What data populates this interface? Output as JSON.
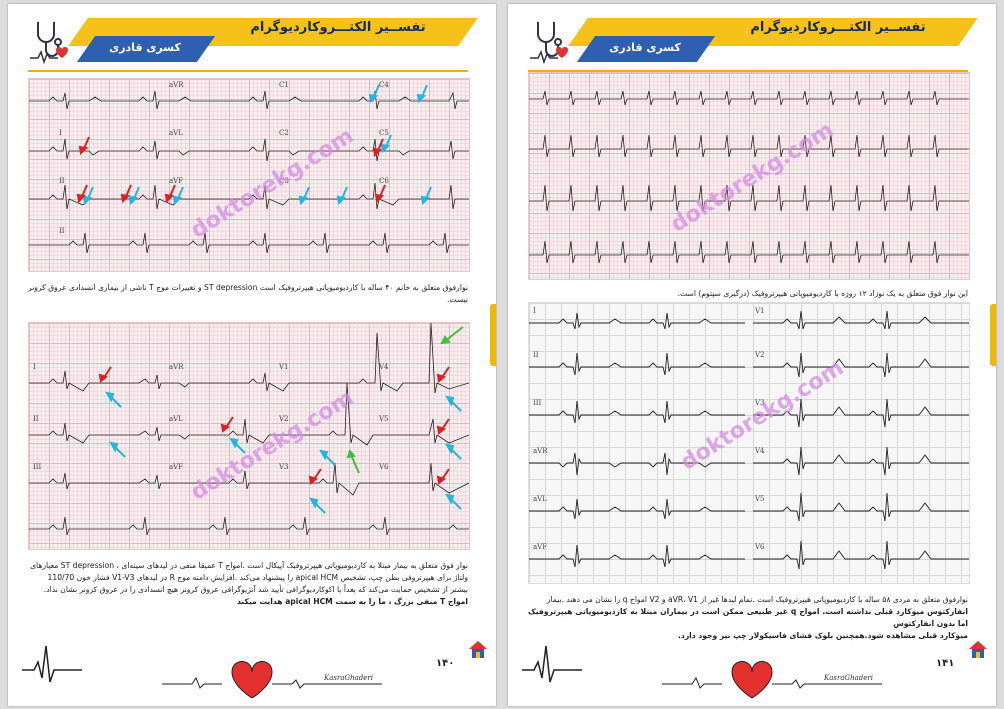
{
  "header": {
    "title": "تفســیر الکتـــروکاردیوگرام",
    "subtitle": "کسری قادری"
  },
  "watermark": "doktorekg.com",
  "left_page": {
    "page_number": "۱۴۰",
    "ecg1_leads": [
      "aVR",
      "C1",
      "C4",
      "I",
      "aVL",
      "C2",
      "C5",
      "II",
      "aVF",
      "C3",
      "C6",
      "II"
    ],
    "caption1": "نوارفوق متعلق به خانم ۴۰ ساله با کاردیومیوپاتی هیپرتروفیک است ST depression و تغییرات موج T ناشی از بیماری انسدادی عروق کرونر نیست.",
    "ecg2_leads": [
      "I",
      "aVR",
      "V1",
      "V4",
      "II",
      "aVL",
      "V2",
      "V5",
      "III",
      "aVF",
      "V3",
      "V6"
    ],
    "caption2_lines": [
      "نوار فوق متعلق به بیمار مبتلا به کاردیومیوپاتی هیپرتروفیک آپیکال است .امواج T عمیقا منفی در لیدهای سینه‌ای ، ST depression معیارهای",
      "ولتاژ برای هیپرتروفی بطن چپ، تشخیص apical HCM را پیشنهاد می‌کند .افزایش دامنه موج R در لیدهای V1-V3 فشار خون 110/70",
      "بیشتر از تشخیص حمایت می‌کند که بعداً با اکوکاردیوگرافی تأیید شد آنژیوگرافی عروق کرونر هیچ انسدادی را در عروق کرونر نشان نداد."
    ],
    "caption2_bold": "امواج T منفی بزرگ ، ما را به سمت apical HCM هدایت میکند"
  },
  "right_page": {
    "page_number": "۱۴۱",
    "caption1": "این نوار فوق متعلق به یک نوزاد ۱۲ روزه با کاردیومیوپاتی هیپرتروفیک (درگیری سپتوم) است.",
    "ecg2_leads": [
      "I",
      "II",
      "III",
      "aVR",
      "aVL",
      "aVF",
      "V1",
      "V2",
      "V3",
      "V4",
      "V5",
      "V6"
    ],
    "caption2_lines": [
      "نوارفوق متعلق به مردی ۵۸ ساله با کاردیومیوپاتی هیپرتروفیک است .تمام لیدها غیر از aVR، V1 و V2 امواج q را نشان می دهند .بیمار",
      "انفارکتوس میوکارد قبلی نداشته است. امواج q غیر طبیعی ممکن است در بیماران مبتلا به کاردیومیوپاتی هیپرتروفیک اما بدون انفارکتوس",
      "میوکارد قبلی مشاهده شود.همچنین بلوک فشای فاسیکولار چپ نیز وجود دارد."
    ]
  },
  "footer": {
    "signature": "KasraGhaderi"
  },
  "colors": {
    "header_yellow": "#f6c21a",
    "header_blue": "#2f5fb0",
    "arrow_red": "#e02020",
    "arrow_cyan": "#22b5e8",
    "arrow_green": "#3ec23e",
    "watermark": "#d58ce3"
  },
  "icons": [
    "stethoscope-heart-logo",
    "heart-icon",
    "house-icon"
  ]
}
